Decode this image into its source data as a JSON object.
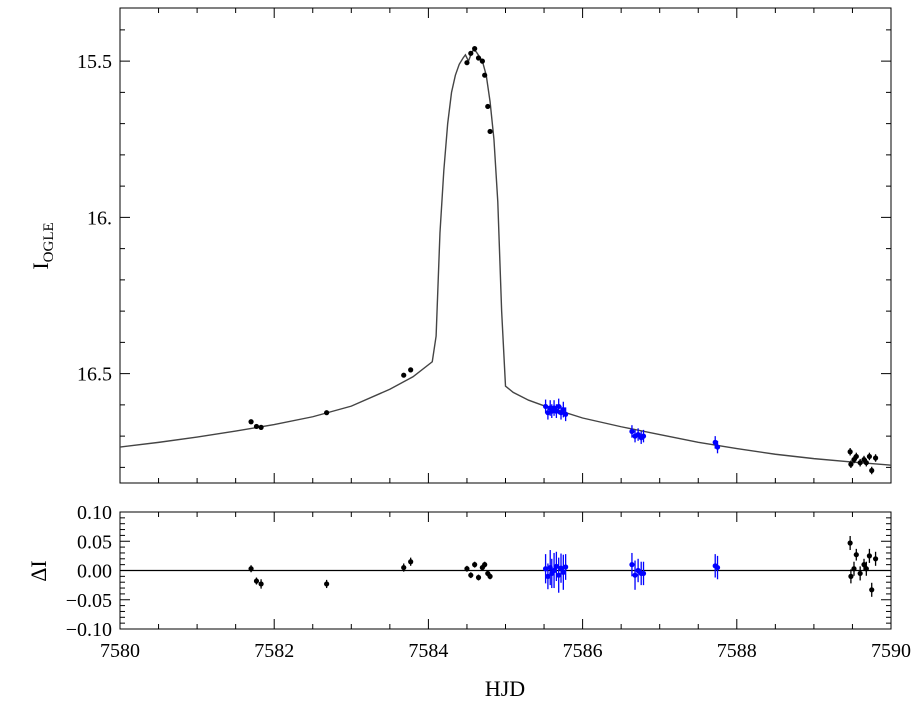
{
  "chart_data": [
    {
      "type": "scatter",
      "panel": "light curve",
      "ylabel_main": "I",
      "ylabel_sub": "OGLE",
      "xlim": [
        7580,
        7590
      ],
      "ylim": [
        16.85,
        15.33
      ],
      "y_inverted": true,
      "yticks": [
        15.5,
        16.0,
        16.5
      ],
      "ytick_labels": [
        "15.5",
        "16.",
        "16.5"
      ],
      "series": [
        {
          "color": "#000000",
          "points": [
            [
              7581.7,
              16.654,
              0.006
            ],
            [
              7581.77,
              16.669,
              0.006
            ],
            [
              7581.83,
              16.672,
              0.006
            ],
            [
              7582.68,
              16.625,
              0.006
            ],
            [
              7583.68,
              16.505,
              0.006
            ],
            [
              7583.77,
              16.488,
              0.006
            ],
            [
              7584.5,
              15.505,
              0.005
            ],
            [
              7584.55,
              15.475,
              0.005
            ],
            [
              7584.6,
              15.46,
              0.005
            ],
            [
              7584.65,
              15.49,
              0.005
            ],
            [
              7584.7,
              15.5,
              0.005
            ],
            [
              7584.73,
              15.545,
              0.005
            ],
            [
              7584.77,
              15.645,
              0.005
            ],
            [
              7584.8,
              15.725,
              0.005
            ],
            [
              7589.47,
              16.75,
              0.012
            ],
            [
              7589.48,
              16.79,
              0.012
            ],
            [
              7589.52,
              16.775,
              0.012
            ],
            [
              7589.55,
              16.765,
              0.012
            ],
            [
              7589.6,
              16.785,
              0.012
            ],
            [
              7589.65,
              16.775,
              0.012
            ],
            [
              7589.68,
              16.785,
              0.012
            ],
            [
              7589.72,
              16.765,
              0.012
            ],
            [
              7589.75,
              16.81,
              0.012
            ],
            [
              7589.8,
              16.77,
              0.012
            ]
          ]
        },
        {
          "color": "#0000ff",
          "points": [
            [
              7585.52,
              16.605,
              0.022
            ],
            [
              7585.55,
              16.625,
              0.022
            ],
            [
              7585.58,
              16.61,
              0.025
            ],
            [
              7585.6,
              16.62,
              0.022
            ],
            [
              7585.63,
              16.61,
              0.025
            ],
            [
              7585.66,
              16.62,
              0.022
            ],
            [
              7585.69,
              16.605,
              0.025
            ],
            [
              7585.72,
              16.625,
              0.022
            ],
            [
              7585.75,
              16.615,
              0.025
            ],
            [
              7585.78,
              16.63,
              0.022
            ],
            [
              7586.64,
              16.685,
              0.02
            ],
            [
              7586.68,
              16.7,
              0.02
            ],
            [
              7586.72,
              16.695,
              0.02
            ],
            [
              7586.76,
              16.705,
              0.02
            ],
            [
              7586.79,
              16.7,
              0.02
            ],
            [
              7587.72,
              16.72,
              0.02
            ],
            [
              7587.75,
              16.735,
              0.02
            ]
          ]
        }
      ],
      "model_curve": [
        [
          7580.0,
          16.735
        ],
        [
          7580.5,
          16.72
        ],
        [
          7581.0,
          16.703
        ],
        [
          7581.5,
          16.684
        ],
        [
          7582.0,
          16.663
        ],
        [
          7582.5,
          16.638
        ],
        [
          7583.0,
          16.604
        ],
        [
          7583.5,
          16.55
        ],
        [
          7583.8,
          16.51
        ],
        [
          7584.05,
          16.462
        ],
        [
          7584.1,
          16.38
        ],
        [
          7584.15,
          16.05
        ],
        [
          7584.2,
          15.85
        ],
        [
          7584.25,
          15.7
        ],
        [
          7584.3,
          15.6
        ],
        [
          7584.35,
          15.545
        ],
        [
          7584.4,
          15.51
        ],
        [
          7584.45,
          15.49
        ],
        [
          7584.48,
          15.48
        ],
        [
          7584.52,
          15.5
        ],
        [
          7584.55,
          15.48
        ],
        [
          7584.58,
          15.465
        ],
        [
          7584.62,
          15.47
        ],
        [
          7584.66,
          15.485
        ],
        [
          7584.7,
          15.5
        ],
        [
          7584.75,
          15.545
        ],
        [
          7584.8,
          15.63
        ],
        [
          7584.85,
          15.75
        ],
        [
          7584.9,
          15.95
        ],
        [
          7584.95,
          16.3
        ],
        [
          7585.0,
          16.54
        ],
        [
          7585.1,
          16.56
        ],
        [
          7585.3,
          16.585
        ],
        [
          7585.5,
          16.603
        ],
        [
          7586.0,
          16.642
        ],
        [
          7586.5,
          16.67
        ],
        [
          7587.0,
          16.695
        ],
        [
          7587.5,
          16.72
        ],
        [
          7588.0,
          16.74
        ],
        [
          7588.5,
          16.758
        ],
        [
          7589.0,
          16.772
        ],
        [
          7589.5,
          16.783
        ],
        [
          7590.0,
          16.793
        ]
      ]
    },
    {
      "type": "scatter",
      "panel": "residuals",
      "xlabel": "HJD",
      "ylabel": "ΔI",
      "xlim": [
        7580,
        7590
      ],
      "ylim": [
        -0.1,
        0.1
      ],
      "xticks": [
        7580,
        7582,
        7584,
        7586,
        7588,
        7590
      ],
      "xtick_labels": [
        "7580",
        "7582",
        "7584",
        "7586",
        "7588",
        "7590"
      ],
      "yticks": [
        -0.1,
        -0.05,
        0.0,
        0.05,
        0.1
      ],
      "ytick_labels": [
        "−0.10",
        "−0.05",
        "0.00",
        "0.05",
        "0.10"
      ],
      "series": [
        {
          "color": "#000000",
          "points": [
            [
              7581.7,
              0.003,
              0.006
            ],
            [
              7581.77,
              -0.018,
              0.006
            ],
            [
              7581.83,
              -0.023,
              0.008
            ],
            [
              7582.68,
              -0.023,
              0.007
            ],
            [
              7583.68,
              0.005,
              0.007
            ],
            [
              7583.77,
              0.015,
              0.007
            ],
            [
              7584.5,
              0.003,
              0.005
            ],
            [
              7584.55,
              -0.008,
              0.005
            ],
            [
              7584.6,
              0.01,
              0.005
            ],
            [
              7584.65,
              -0.012,
              0.005
            ],
            [
              7584.7,
              0.005,
              0.005
            ],
            [
              7584.73,
              0.01,
              0.005
            ],
            [
              7584.77,
              -0.005,
              0.005
            ],
            [
              7584.8,
              -0.01,
              0.005
            ],
            [
              7589.47,
              0.047,
              0.012
            ],
            [
              7589.48,
              -0.01,
              0.012
            ],
            [
              7589.52,
              0.003,
              0.012
            ],
            [
              7589.55,
              0.027,
              0.01
            ],
            [
              7589.6,
              -0.005,
              0.012
            ],
            [
              7589.65,
              0.01,
              0.01
            ],
            [
              7589.68,
              0.003,
              0.012
            ],
            [
              7589.72,
              0.025,
              0.012
            ],
            [
              7589.75,
              -0.033,
              0.012
            ],
            [
              7589.8,
              0.02,
              0.012
            ]
          ]
        },
        {
          "color": "#0000ff",
          "points": [
            [
              7585.52,
              0.003,
              0.025
            ],
            [
              7585.55,
              -0.01,
              0.022
            ],
            [
              7585.58,
              0.005,
              0.03
            ],
            [
              7585.6,
              -0.005,
              0.025
            ],
            [
              7585.63,
              0.0,
              0.03
            ],
            [
              7585.66,
              0.007,
              0.025
            ],
            [
              7585.69,
              -0.008,
              0.03
            ],
            [
              7585.72,
              0.004,
              0.025
            ],
            [
              7585.75,
              -0.003,
              0.03
            ],
            [
              7585.78,
              0.006,
              0.022
            ],
            [
              7586.64,
              0.01,
              0.02
            ],
            [
              7586.68,
              -0.008,
              0.025
            ],
            [
              7586.72,
              0.0,
              0.02
            ],
            [
              7586.76,
              -0.005,
              0.02
            ],
            [
              7586.79,
              -0.005,
              0.02
            ],
            [
              7587.72,
              0.008,
              0.02
            ],
            [
              7587.75,
              0.005,
              0.02
            ]
          ]
        }
      ],
      "zero_line": 0.0
    }
  ]
}
